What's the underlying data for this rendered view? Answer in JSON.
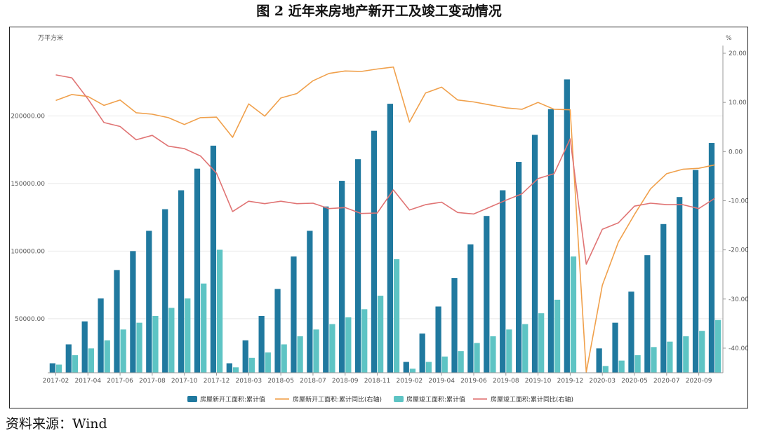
{
  "figure": {
    "title": "图 2   近年来房地产新开工及竣工变动情况",
    "source": "资料来源：Wind"
  },
  "colors": {
    "new_start_bar": "#20799f",
    "completion_bar": "#5ec4c4",
    "new_start_line": "#f0a04b",
    "completion_line": "#e07474",
    "grid": "#e8e8e8",
    "axis": "#999999"
  },
  "chart_data": {
    "type": "bar",
    "categories": [
      "2017-02",
      "2017-03",
      "2017-04",
      "2017-05",
      "2017-06",
      "2017-07",
      "2017-08",
      "2017-09",
      "2017-10",
      "2017-11",
      "2017-12",
      "2018-02",
      "2018-03",
      "2018-04",
      "2018-05",
      "2018-06",
      "2018-07",
      "2018-08",
      "2018-09",
      "2018-10",
      "2018-11",
      "2018-12",
      "2019-02",
      "2019-03",
      "2019-04",
      "2019-05",
      "2019-06",
      "2019-07",
      "2019-08",
      "2019-09",
      "2019-10",
      "2019-11",
      "2019-12",
      "2020-02",
      "2020-03",
      "2020-04",
      "2020-05",
      "2020-06",
      "2020-07",
      "2020-08",
      "2020-09",
      "2020-10"
    ],
    "x_tick_labels": [
      "2017-02",
      "2017-04",
      "2017-06",
      "2017-08",
      "2017-10",
      "2017-12",
      "2018-03",
      "2018-05",
      "2018-07",
      "2018-09",
      "2018-11",
      "2019-02",
      "2019-04",
      "2019-06",
      "2019-08",
      "2019-10",
      "2019-12",
      "2020-03",
      "2020-05",
      "2020-07",
      "2020-09"
    ],
    "y_left": {
      "label": "万平方米",
      "ticks": [
        "50000.00",
        "100000.00",
        "150000.00",
        "200000.00"
      ],
      "range": [
        10000,
        250000
      ]
    },
    "y_right": {
      "label": "%",
      "ticks": [
        "20.00",
        "10.00",
        "0.00",
        "-10.00",
        "-20.00",
        "-30.00",
        "-40.00"
      ],
      "range": [
        -45,
        21
      ]
    },
    "grid": true,
    "legend_position": "bottom",
    "series": [
      {
        "name": "房屋新开工面积:累计值",
        "type": "bar",
        "axis": "left",
        "values": [
          17000,
          31000,
          48000,
          65000,
          86000,
          100000,
          115000,
          131000,
          145000,
          161000,
          178000,
          17000,
          34000,
          52000,
          72000,
          96000,
          115000,
          133000,
          152000,
          168000,
          189000,
          209000,
          18000,
          39000,
          59000,
          80000,
          105000,
          126000,
          145000,
          166000,
          186000,
          205000,
          227000,
          10000,
          28000,
          47000,
          70000,
          97000,
          120000,
          140000,
          160000,
          180000
        ]
      },
      {
        "name": "房屋新开工面积:累计同比(右轴)",
        "type": "line",
        "axis": "right",
        "values": [
          10.4,
          11.6,
          11.2,
          9.4,
          10.5,
          7.9,
          7.6,
          6.9,
          5.5,
          6.9,
          7.0,
          2.9,
          9.7,
          7.2,
          10.9,
          11.8,
          14.4,
          15.9,
          16.4,
          16.3,
          16.8,
          17.2,
          6.0,
          11.9,
          13.1,
          10.5,
          10.1,
          9.5,
          8.9,
          8.6,
          10.0,
          8.6,
          8.5,
          -44.9,
          -27.2,
          -18.4,
          -12.8,
          -7.6,
          -4.5,
          -3.6,
          -3.4,
          -2.7
        ]
      },
      {
        "name": "房屋竣工面积:累计值",
        "type": "bar",
        "axis": "left",
        "values": [
          16000,
          23000,
          28000,
          34000,
          42000,
          47000,
          52000,
          58000,
          65000,
          76000,
          101000,
          14000,
          21000,
          25000,
          31000,
          37000,
          42000,
          46000,
          51000,
          57000,
          67000,
          94000,
          13000,
          18000,
          22000,
          26000,
          32000,
          37000,
          42000,
          46000,
          54000,
          64000,
          96000,
          9000,
          15000,
          19000,
          23000,
          29000,
          33000,
          37000,
          41000,
          49000
        ]
      },
      {
        "name": "房屋竣工面积:累计同比(右轴)",
        "type": "line",
        "axis": "right",
        "values": [
          15.6,
          15.0,
          10.7,
          5.9,
          5.1,
          2.4,
          3.3,
          1.1,
          0.6,
          -0.9,
          -4.4,
          -12.2,
          -10.1,
          -10.6,
          -10.1,
          -10.6,
          -10.5,
          -11.6,
          -11.4,
          -12.6,
          -12.5,
          -7.8,
          -11.9,
          -10.8,
          -10.3,
          -12.4,
          -12.7,
          -11.3,
          -9.9,
          -8.6,
          -5.5,
          -4.5,
          2.6,
          -22.9,
          -15.8,
          -14.5,
          -11.1,
          -10.5,
          -10.8,
          -10.8,
          -11.6,
          -9.5
        ]
      }
    ]
  }
}
